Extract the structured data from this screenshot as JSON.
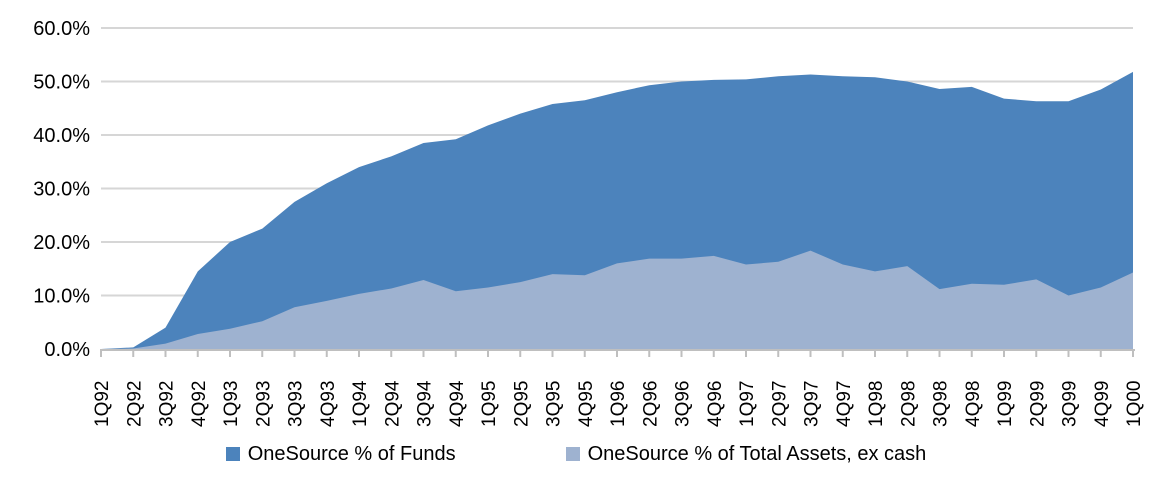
{
  "chart_data": {
    "type": "area",
    "title": "",
    "xlabel": "",
    "ylabel": "",
    "categories": [
      "1Q92",
      "2Q92",
      "3Q92",
      "4Q92",
      "1Q93",
      "2Q93",
      "3Q93",
      "4Q93",
      "1Q94",
      "2Q94",
      "3Q94",
      "4Q94",
      "1Q95",
      "2Q95",
      "3Q95",
      "4Q95",
      "1Q96",
      "2Q96",
      "3Q96",
      "4Q96",
      "1Q97",
      "2Q97",
      "3Q97",
      "4Q97",
      "1Q98",
      "2Q98",
      "3Q98",
      "4Q98",
      "1Q99",
      "2Q99",
      "3Q99",
      "4Q99",
      "1Q00"
    ],
    "series": [
      {
        "name": "OneSource % of Funds",
        "color": "#4C83BC",
        "values": [
          0.0,
          0.3,
          4.0,
          14.5,
          20.0,
          22.5,
          27.5,
          31.0,
          34.0,
          36.0,
          38.5,
          39.2,
          41.8,
          44.0,
          45.8,
          46.5,
          48.0,
          49.3,
          50.0,
          50.3,
          50.4,
          51.0,
          51.3,
          51.0,
          50.8,
          50.0,
          48.6,
          49.0,
          46.8,
          46.3,
          46.3,
          48.5,
          51.8
        ]
      },
      {
        "name": "OneSource % of Total Assets, ex cash",
        "color": "#9EB2D0",
        "values": [
          0.0,
          0.1,
          1.0,
          2.8,
          3.8,
          5.2,
          7.8,
          9.0,
          10.3,
          11.3,
          12.9,
          10.8,
          11.5,
          12.5,
          14.0,
          13.8,
          16.0,
          16.9,
          16.9,
          17.4,
          15.8,
          16.3,
          18.4,
          15.8,
          14.5,
          15.5,
          11.2,
          12.2,
          12.0,
          13.0,
          10.0,
          11.5,
          14.3
        ]
      }
    ],
    "ylim": [
      0,
      60
    ],
    "ytick_step": 10,
    "ytick_labels": [
      "0.0%",
      "10.0%",
      "20.0%",
      "30.0%",
      "40.0%",
      "50.0%",
      "60.0%"
    ],
    "grid": "horizontal",
    "legend_position": "bottom",
    "colors": {
      "grid_color": "#D6D6D6",
      "axis_color": "#BFBFBF",
      "label_color": "#000000",
      "background": "#FFFFFF"
    }
  }
}
